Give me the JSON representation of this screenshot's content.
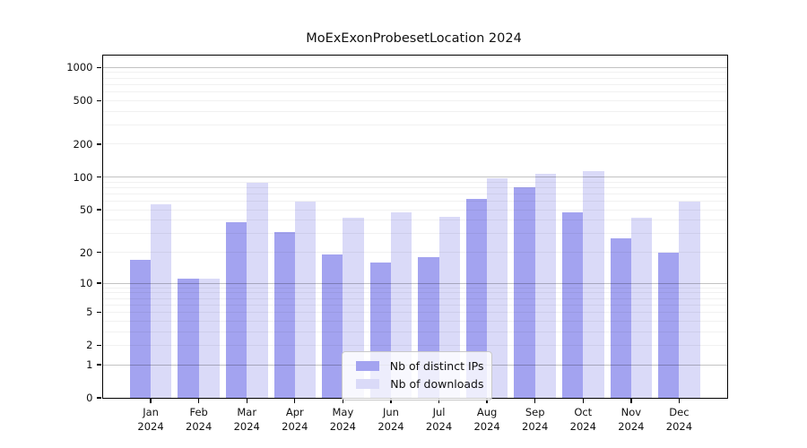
{
  "title": "MoExExonProbesetLocation 2024",
  "chart_data": {
    "type": "bar",
    "title": "MoExExonProbesetLocation 2024",
    "categories": [
      "Jan",
      "Feb",
      "Mar",
      "Apr",
      "May",
      "Jun",
      "Jul",
      "Aug",
      "Sep",
      "Oct",
      "Nov",
      "Dec"
    ],
    "category_year": "2024",
    "series": [
      {
        "name": "Nb of distinct IPs",
        "color": "#a3a3f0",
        "values": [
          17,
          11,
          38,
          31,
          19,
          16,
          18,
          63,
          81,
          47,
          27,
          20
        ]
      },
      {
        "name": "Nb of downloads",
        "color": "#dadaf8",
        "values": [
          56,
          11,
          89,
          60,
          42,
          47,
          43,
          97,
          108,
          113,
          42,
          60
        ]
      }
    ],
    "y_ticks": [
      0,
      1,
      2,
      5,
      10,
      20,
      50,
      100,
      200,
      500,
      1000
    ],
    "y_scale": "log1p",
    "ylim": [
      0,
      1295
    ],
    "xlabel": "",
    "ylabel": "",
    "grid": "on",
    "grid_major": [
      1,
      10,
      100,
      1000
    ],
    "grid_minor_steps": [
      2,
      3,
      4,
      5,
      6,
      7,
      8,
      9
    ],
    "legend_position": "bottom-center",
    "background_color": "#ffffff",
    "axis_color": "#000000"
  }
}
